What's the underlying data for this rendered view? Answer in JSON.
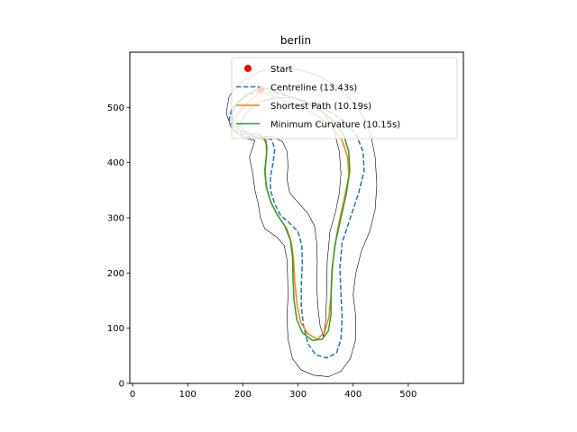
{
  "chart_data": {
    "type": "line",
    "title": "berlin",
    "xlabel": "",
    "ylabel": "",
    "xlim": [
      -5,
      600
    ],
    "ylim": [
      0,
      600
    ],
    "xticks": [
      0,
      100,
      200,
      300,
      400,
      500
    ],
    "yticks": [
      0,
      100,
      200,
      300,
      400,
      500
    ],
    "grid": false,
    "legend_position": "top-right",
    "start": {
      "label": "Start",
      "x": 232,
      "y": 532,
      "color": "#ff0000"
    },
    "track_boundaries": {
      "color": "#000000",
      "outer": [
        [
          230,
          565
        ],
        [
          195,
          545
        ],
        [
          175,
          520
        ],
        [
          170,
          490
        ],
        [
          178,
          465
        ],
        [
          200,
          445
        ],
        [
          222,
          440
        ],
        [
          212,
          410
        ],
        [
          218,
          380
        ],
        [
          222,
          350
        ],
        [
          228,
          325
        ],
        [
          232,
          300
        ],
        [
          240,
          280
        ],
        [
          262,
          265
        ],
        [
          275,
          250
        ],
        [
          280,
          225
        ],
        [
          281,
          200
        ],
        [
          282,
          160
        ],
        [
          280,
          120
        ],
        [
          282,
          80
        ],
        [
          290,
          45
        ],
        [
          305,
          25
        ],
        [
          328,
          15
        ],
        [
          355,
          12
        ],
        [
          378,
          22
        ],
        [
          395,
          45
        ],
        [
          405,
          80
        ],
        [
          405,
          120
        ],
        [
          400,
          160
        ],
        [
          405,
          200
        ],
        [
          415,
          240
        ],
        [
          430,
          275
        ],
        [
          440,
          315
        ],
        [
          443,
          360
        ],
        [
          440,
          410
        ],
        [
          432,
          450
        ],
        [
          420,
          480
        ],
        [
          405,
          505
        ],
        [
          385,
          525
        ],
        [
          360,
          545
        ],
        [
          330,
          560
        ],
        [
          300,
          568
        ],
        [
          265,
          572
        ],
        [
          230,
          565
        ]
      ],
      "inner": [
        [
          230,
          510
        ],
        [
          208,
          492
        ],
        [
          195,
          472
        ],
        [
          205,
          452
        ],
        [
          228,
          446
        ],
        [
          252,
          448
        ],
        [
          272,
          438
        ],
        [
          280,
          420
        ],
        [
          282,
          395
        ],
        [
          280,
          370
        ],
        [
          285,
          345
        ],
        [
          300,
          328
        ],
        [
          318,
          308
        ],
        [
          330,
          285
        ],
        [
          334,
          255
        ],
        [
          335,
          220
        ],
        [
          334,
          180
        ],
        [
          336,
          140
        ],
        [
          340,
          105
        ],
        [
          346,
          85
        ],
        [
          350,
          110
        ],
        [
          352,
          160
        ],
        [
          353,
          220
        ],
        [
          358,
          275
        ],
        [
          368,
          310
        ],
        [
          375,
          345
        ],
        [
          378,
          380
        ],
        [
          375,
          420
        ],
        [
          366,
          455
        ],
        [
          348,
          488
        ],
        [
          322,
          508
        ],
        [
          292,
          518
        ],
        [
          260,
          518
        ],
        [
          230,
          510
        ]
      ]
    },
    "series": [
      {
        "name": "Centreline (13.43s)",
        "color": "#1f77b4",
        "style": "dashed",
        "points": [
          [
            232,
            530
          ],
          [
            200,
            518
          ],
          [
            180,
            498
          ],
          [
            175,
            478
          ],
          [
            185,
            458
          ],
          [
            210,
            447
          ],
          [
            235,
            446
          ],
          [
            252,
            442
          ],
          [
            258,
            425
          ],
          [
            255,
            400
          ],
          [
            250,
            375
          ],
          [
            250,
            350
          ],
          [
            258,
            325
          ],
          [
            268,
            305
          ],
          [
            285,
            290
          ],
          [
            300,
            275
          ],
          [
            307,
            250
          ],
          [
            308,
            220
          ],
          [
            306,
            180
          ],
          [
            306,
            140
          ],
          [
            310,
            105
          ],
          [
            318,
            72
          ],
          [
            332,
            52
          ],
          [
            352,
            46
          ],
          [
            370,
            55
          ],
          [
            378,
            80
          ],
          [
            380,
            120
          ],
          [
            378,
            160
          ],
          [
            376,
            210
          ],
          [
            380,
            255
          ],
          [
            395,
            300
          ],
          [
            410,
            345
          ],
          [
            420,
            385
          ],
          [
            418,
            420
          ],
          [
            405,
            452
          ],
          [
            380,
            478
          ],
          [
            348,
            498
          ],
          [
            312,
            512
          ],
          [
            275,
            522
          ],
          [
            250,
            528
          ],
          [
            232,
            530
          ]
        ]
      },
      {
        "name": "Shortest Path (10.19s)",
        "color": "#ff7f0e",
        "style": "solid",
        "points": [
          [
            232,
            528
          ],
          [
            210,
            510
          ],
          [
            192,
            490
          ],
          [
            180,
            472
          ],
          [
            185,
            455
          ],
          [
            205,
            446
          ],
          [
            225,
            445
          ],
          [
            238,
            443
          ],
          [
            244,
            430
          ],
          [
            242,
            405
          ],
          [
            240,
            380
          ],
          [
            244,
            350
          ],
          [
            252,
            325
          ],
          [
            266,
            300
          ],
          [
            280,
            280
          ],
          [
            288,
            255
          ],
          [
            292,
            225
          ],
          [
            294,
            185
          ],
          [
            298,
            145
          ],
          [
            305,
            110
          ],
          [
            318,
            90
          ],
          [
            335,
            80
          ],
          [
            348,
            92
          ],
          [
            356,
            120
          ],
          [
            360,
            160
          ],
          [
            362,
            200
          ],
          [
            366,
            245
          ],
          [
            374,
            290
          ],
          [
            384,
            335
          ],
          [
            392,
            375
          ],
          [
            390,
            410
          ],
          [
            380,
            440
          ],
          [
            362,
            465
          ],
          [
            335,
            485
          ],
          [
            305,
            500
          ],
          [
            275,
            512
          ],
          [
            250,
            522
          ],
          [
            232,
            528
          ]
        ]
      },
      {
        "name": "Minimum Curvature (10.15s)",
        "color": "#2ca02c",
        "style": "solid",
        "points": [
          [
            232,
            536
          ],
          [
            205,
            522
          ],
          [
            188,
            505
          ],
          [
            180,
            488
          ],
          [
            182,
            470
          ],
          [
            195,
            458
          ],
          [
            215,
            452
          ],
          [
            232,
            450
          ],
          [
            242,
            440
          ],
          [
            243,
            415
          ],
          [
            240,
            388
          ],
          [
            242,
            358
          ],
          [
            250,
            330
          ],
          [
            262,
            306
          ],
          [
            276,
            285
          ],
          [
            286,
            260
          ],
          [
            290,
            230
          ],
          [
            291,
            190
          ],
          [
            293,
            150
          ],
          [
            298,
            115
          ],
          [
            308,
            92
          ],
          [
            326,
            78
          ],
          [
            344,
            80
          ],
          [
            355,
            95
          ],
          [
            360,
            125
          ],
          [
            360,
            165
          ],
          [
            362,
            210
          ],
          [
            368,
            255
          ],
          [
            378,
            300
          ],
          [
            388,
            345
          ],
          [
            394,
            385
          ],
          [
            392,
            420
          ],
          [
            383,
            450
          ],
          [
            365,
            475
          ],
          [
            340,
            495
          ],
          [
            310,
            510
          ],
          [
            280,
            522
          ],
          [
            252,
            532
          ],
          [
            232,
            536
          ]
        ]
      }
    ]
  }
}
